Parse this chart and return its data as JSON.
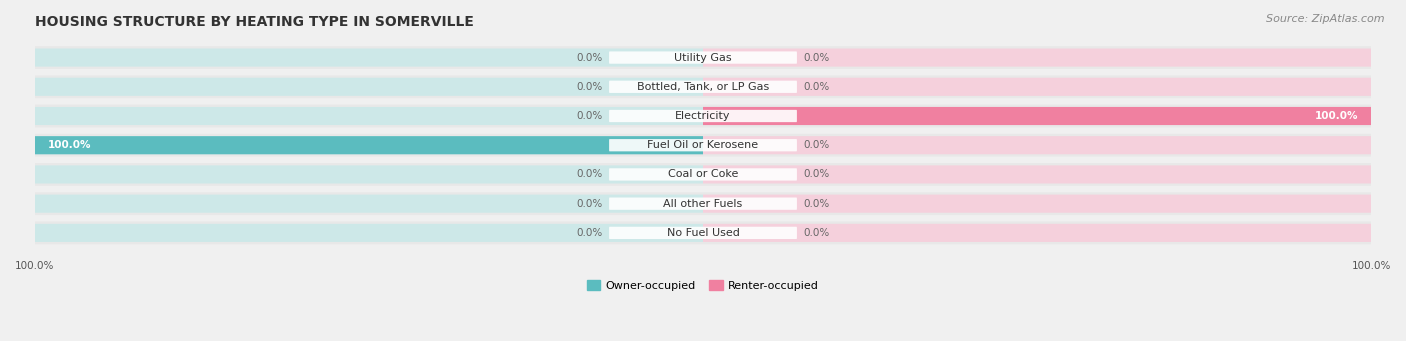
{
  "title": "HOUSING STRUCTURE BY HEATING TYPE IN SOMERVILLE",
  "source": "Source: ZipAtlas.com",
  "categories": [
    "Utility Gas",
    "Bottled, Tank, or LP Gas",
    "Electricity",
    "Fuel Oil or Kerosene",
    "Coal or Coke",
    "All other Fuels",
    "No Fuel Used"
  ],
  "owner_values": [
    0.0,
    0.0,
    0.0,
    100.0,
    0.0,
    0.0,
    0.0
  ],
  "renter_values": [
    0.0,
    0.0,
    100.0,
    0.0,
    0.0,
    0.0,
    0.0
  ],
  "owner_color": "#5bbcbf",
  "renter_color": "#f080a0",
  "owner_color_bg": "#cde8e8",
  "renter_color_bg": "#f5d0dc",
  "owner_label": "Owner-occupied",
  "renter_label": "Renter-occupied",
  "bg_color": "#f0f0f0",
  "row_bg_color": "#e8e8e8",
  "axis_min": -100,
  "axis_max": 100,
  "figsize": [
    14.06,
    3.41
  ],
  "dpi": 100,
  "title_fontsize": 10,
  "source_fontsize": 8,
  "label_fontsize": 7.5,
  "category_fontsize": 8
}
